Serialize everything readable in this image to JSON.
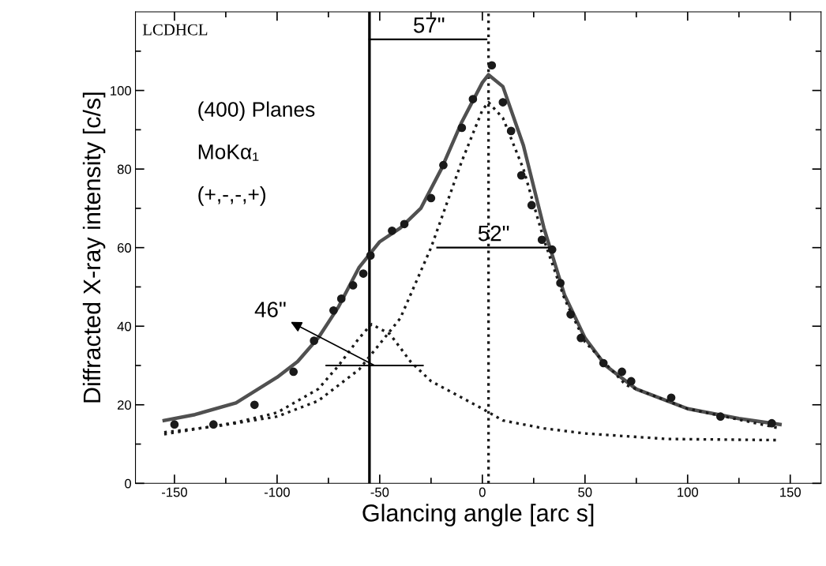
{
  "chart_data": {
    "type": "scatter",
    "xlabel": "Glancing angle [arc s]",
    "ylabel": "Diffracted X-ray intensity [c/s]",
    "xlim": [
      -169,
      165
    ],
    "ylim": [
      0,
      120
    ],
    "xticks": [
      -150,
      -100,
      -50,
      0,
      50,
      100,
      150
    ],
    "yticks": [
      0,
      20,
      40,
      60,
      80,
      100
    ],
    "grid": false,
    "legend": false,
    "series": [
      {
        "color": "#1a1a1a",
        "marker": "circle",
        "x": [
          -150,
          -131,
          -111,
          -92,
          -82,
          -72.5,
          -68.7,
          -63,
          -58,
          -54.5,
          -44,
          -38,
          -25,
          -19,
          -10,
          -4.6,
          4.6,
          10,
          14,
          19,
          24,
          29,
          34,
          38,
          43,
          48,
          59,
          68,
          72.5,
          92,
          116,
          141
        ],
        "values": [
          15,
          15,
          20,
          28.4,
          36.3,
          44,
          47,
          50.4,
          53.4,
          58,
          64.3,
          66,
          72.6,
          81,
          90.5,
          97.8,
          106.4,
          97,
          89.7,
          78.4,
          70.8,
          62,
          59.5,
          51,
          43,
          37,
          30.6,
          28.4,
          26,
          21.8,
          17,
          15.3
        ]
      },
      {
        "type": "line",
        "color": "#505050",
        "line_style": "solid",
        "marker": "none",
        "x": [
          -155,
          -140,
          -120,
          -100,
          -90,
          -80,
          -70,
          -60,
          -50,
          -40,
          -30,
          -20,
          -10,
          0,
          3,
          10,
          20,
          30,
          40,
          50,
          60,
          75,
          100,
          125,
          145
        ],
        "values": [
          16,
          17.5,
          20.5,
          27,
          31,
          37,
          45,
          55,
          61.5,
          65,
          70,
          80,
          92,
          102,
          104,
          101,
          86,
          65,
          48,
          37,
          30,
          24,
          19,
          16.5,
          15
        ]
      },
      {
        "type": "line",
        "color": "#1a1a1a",
        "line_style": "dotted",
        "marker": "none",
        "x": [
          -155,
          -130,
          -100,
          -80,
          -60,
          -40,
          -25,
          -10,
          0,
          3,
          10,
          20,
          30,
          40,
          50,
          70,
          100,
          145
        ],
        "values": [
          13,
          14.5,
          17,
          21,
          29,
          42,
          60,
          82,
          95,
          97,
          93,
          80,
          62,
          47,
          36,
          25,
          19,
          14
        ]
      },
      {
        "type": "line",
        "color": "#1a1a1a",
        "line_style": "dotted",
        "marker": "none",
        "x": [
          -155,
          -120,
          -100,
          -80,
          -70,
          -60,
          -54,
          -45,
          -35,
          -25,
          -16,
          0,
          10,
          30,
          50,
          90,
          145
        ],
        "values": [
          12.5,
          15.5,
          18,
          24,
          30,
          37,
          40.5,
          38,
          31,
          26,
          23.5,
          19,
          16,
          14,
          12.7,
          11.3,
          11
        ]
      },
      {
        "type": "line",
        "color": "#000000",
        "line_style": "solid",
        "marker": "none",
        "x": [
          -55,
          2
        ],
        "values": [
          113,
          113
        ]
      },
      {
        "type": "line",
        "color": "#000000",
        "line_style": "solid",
        "marker": "none",
        "x": [
          -22,
          33
        ],
        "values": [
          60,
          60
        ]
      },
      {
        "type": "line",
        "color": "#000000",
        "line_style": "solid",
        "marker": "none",
        "x": [
          -76,
          -29
        ],
        "values": [
          30,
          30
        ]
      }
    ],
    "ref_lines": [
      {
        "axis": "x",
        "value": -55,
        "color": "#000000",
        "line_style": "solid"
      },
      {
        "axis": "x",
        "value": 3,
        "color": "#1a1a1a",
        "line_style": "dotted"
      }
    ],
    "annotations": [
      "LCDHCL",
      "(400) Planes",
      "MoKα₁",
      "(+,-,-,+)",
      {
        "text": "57\"",
        "x": -26,
        "y": 113
      },
      {
        "text": "52\"",
        "x": 5.5,
        "y": 60
      },
      {
        "text": "46\"",
        "x": -52.5,
        "y": 30
      }
    ]
  }
}
